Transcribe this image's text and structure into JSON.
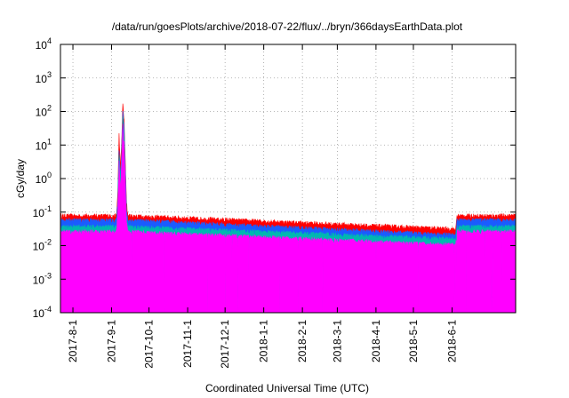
{
  "chart_data": {
    "type": "area",
    "title": "/data/run/goesPlots/archive/2018-07-22/flux/../bryn/366daysEarthData.plot",
    "xlabel": "Coordinated Universal Time (UTC)",
    "ylabel": "cGy/day",
    "y_scale": "log",
    "ylim": [
      0.0001,
      10000
    ],
    "xlim": [
      "2017-07-22",
      "2018-07-22"
    ],
    "grid": true,
    "y_ticks": [
      {
        "base": "10",
        "exp": "-4"
      },
      {
        "base": "10",
        "exp": "-3"
      },
      {
        "base": "10",
        "exp": "-2"
      },
      {
        "base": "10",
        "exp": "-1"
      },
      {
        "base": "10",
        "exp": "0"
      },
      {
        "base": "10",
        "exp": "1"
      },
      {
        "base": "10",
        "exp": "2"
      },
      {
        "base": "10",
        "exp": "3"
      },
      {
        "base": "10",
        "exp": "4"
      }
    ],
    "x_ticks": [
      {
        "date": "2017-08-01",
        "label": "2017-8-1"
      },
      {
        "date": "2017-09-01",
        "label": "2017-9-1"
      },
      {
        "date": "2017-10-01",
        "label": "2017-10-1"
      },
      {
        "date": "2017-11-01",
        "label": "2017-11-1"
      },
      {
        "date": "2017-12-01",
        "label": "2017-12-1"
      },
      {
        "date": "2018-01-01",
        "label": "2018-1-1"
      },
      {
        "date": "2018-02-01",
        "label": "2018-2-1"
      },
      {
        "date": "2018-03-01",
        "label": "2018-3-1"
      },
      {
        "date": "2018-04-01",
        "label": "2018-4-1"
      },
      {
        "date": "2018-05-01",
        "label": "2018-5-1"
      },
      {
        "date": "2018-06-01",
        "label": "2018-6-1"
      }
    ],
    "series": [
      {
        "color": "#ff0000",
        "baseline": 0.075,
        "x": [
          "2017-07-22",
          "2017-09-05",
          "2017-09-06",
          "2017-09-07",
          "2017-09-08",
          "2017-09-09",
          "2017-09-10",
          "2017-09-11",
          "2017-09-12",
          "2017-09-13",
          "2017-09-14",
          "2018-06-04",
          "2018-06-05",
          "2018-07-22"
        ],
        "y": [
          0.075,
          0.075,
          0.4,
          20,
          2,
          10,
          170,
          50,
          3,
          0.2,
          0.075,
          0.03,
          0.075,
          0.075
        ]
      },
      {
        "color": "#1a5cff",
        "baseline": 0.055,
        "x": [
          "2017-07-22",
          "2017-09-05",
          "2017-09-06",
          "2017-09-07",
          "2017-09-08",
          "2017-09-09",
          "2017-09-10",
          "2017-09-11",
          "2017-09-12",
          "2017-09-13",
          "2017-09-14",
          "2018-06-04",
          "2018-06-05",
          "2018-07-22"
        ],
        "y": [
          0.055,
          0.055,
          0.25,
          8,
          1.2,
          6,
          100,
          30,
          2,
          0.12,
          0.055,
          0.02,
          0.055,
          0.055
        ]
      },
      {
        "color": "#00b8b0",
        "baseline": 0.035,
        "x": [
          "2017-07-22",
          "2017-09-05",
          "2017-09-06",
          "2017-09-07",
          "2017-09-08",
          "2017-09-09",
          "2017-09-10",
          "2017-09-11",
          "2017-09-12",
          "2017-09-13",
          "2017-09-14",
          "2018-06-04",
          "2018-06-05",
          "2018-07-22"
        ],
        "y": [
          0.035,
          0.035,
          0.15,
          5,
          0.8,
          4,
          60,
          18,
          1.2,
          0.08,
          0.035,
          0.015,
          0.035,
          0.035
        ]
      },
      {
        "color": "#ff00ff",
        "baseline": 0.025,
        "x": [
          "2017-07-22",
          "2017-09-05",
          "2017-09-06",
          "2017-09-07",
          "2017-09-08",
          "2017-09-09",
          "2017-09-10",
          "2017-09-11",
          "2017-09-12",
          "2017-09-13",
          "2017-09-14",
          "2018-06-04",
          "2018-06-05",
          "2018-07-22"
        ],
        "y": [
          0.025,
          0.025,
          0.1,
          3,
          0.5,
          2.5,
          40,
          12,
          0.8,
          0.05,
          0.025,
          0.01,
          0.025,
          0.025
        ]
      }
    ]
  }
}
